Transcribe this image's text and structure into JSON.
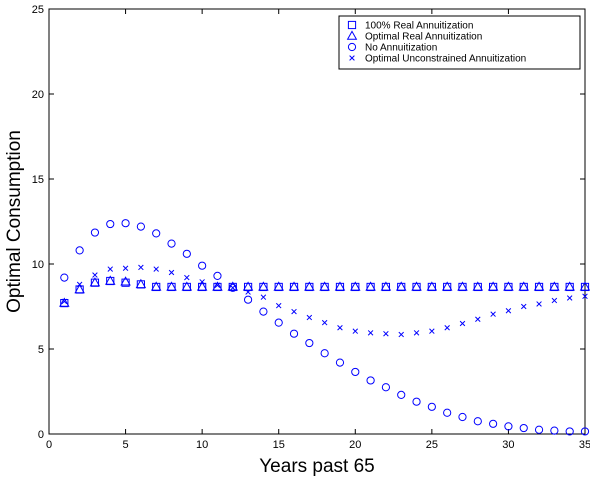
{
  "chart_data": {
    "type": "scatter",
    "xlabel": "Years past 65",
    "ylabel": "Optimal Consumption",
    "xlim": [
      0,
      35
    ],
    "ylim": [
      0,
      25
    ],
    "x_ticks": [
      0,
      5,
      10,
      15,
      20,
      25,
      30,
      35
    ],
    "y_ticks": [
      0,
      5,
      10,
      15,
      20,
      25
    ],
    "grid": false,
    "legend_position": "top-right",
    "marker_color": "#0000ff",
    "x": [
      1,
      2,
      3,
      4,
      5,
      6,
      7,
      8,
      9,
      10,
      11,
      12,
      13,
      14,
      15,
      16,
      17,
      18,
      19,
      20,
      21,
      22,
      23,
      24,
      25,
      26,
      27,
      28,
      29,
      30,
      31,
      32,
      33,
      34,
      35
    ],
    "series": [
      {
        "name": "100% Real Annuitization",
        "marker": "square",
        "values": [
          7.7,
          8.5,
          8.9,
          9.0,
          8.9,
          8.8,
          8.65,
          8.65,
          8.65,
          8.65,
          8.65,
          8.65,
          8.65,
          8.65,
          8.65,
          8.65,
          8.65,
          8.65,
          8.65,
          8.65,
          8.65,
          8.65,
          8.65,
          8.65,
          8.65,
          8.65,
          8.65,
          8.65,
          8.65,
          8.65,
          8.65,
          8.65,
          8.65,
          8.65,
          8.65
        ]
      },
      {
        "name": "Optimal Real Annuitization",
        "marker": "triangle",
        "values": [
          7.7,
          8.5,
          8.9,
          9.0,
          8.95,
          8.8,
          8.65,
          8.65,
          8.65,
          8.65,
          8.65,
          8.65,
          8.65,
          8.65,
          8.65,
          8.65,
          8.65,
          8.65,
          8.65,
          8.65,
          8.65,
          8.65,
          8.65,
          8.65,
          8.65,
          8.65,
          8.65,
          8.65,
          8.65,
          8.65,
          8.65,
          8.65,
          8.65,
          8.65,
          8.65
        ]
      },
      {
        "name": "No Annuitization",
        "marker": "circle",
        "values": [
          9.2,
          10.8,
          11.85,
          12.35,
          12.4,
          12.2,
          11.8,
          11.2,
          10.6,
          9.9,
          9.3,
          8.6,
          7.9,
          7.2,
          6.55,
          5.9,
          5.35,
          4.75,
          4.2,
          3.65,
          3.15,
          2.75,
          2.3,
          1.9,
          1.6,
          1.25,
          1.0,
          0.75,
          0.6,
          0.45,
          0.35,
          0.25,
          0.2,
          0.15,
          0.15
        ]
      },
      {
        "name": "Optimal Unconstrained Annuitization",
        "marker": "x",
        "values": [
          7.8,
          8.8,
          9.35,
          9.7,
          9.75,
          9.8,
          9.7,
          9.5,
          9.2,
          8.95,
          8.75,
          8.6,
          8.35,
          8.05,
          7.55,
          7.2,
          6.85,
          6.55,
          6.25,
          6.05,
          5.95,
          5.9,
          5.85,
          5.95,
          6.05,
          6.25,
          6.5,
          6.75,
          7.05,
          7.25,
          7.5,
          7.65,
          7.85,
          8.0,
          8.1
        ]
      }
    ]
  }
}
